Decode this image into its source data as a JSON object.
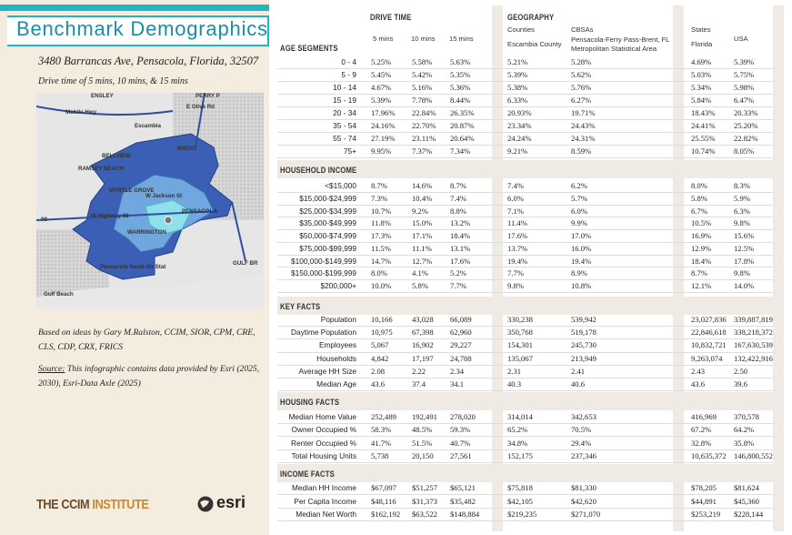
{
  "header": {
    "title": "Benchmark Demographics",
    "address": "3480 Barrancas Ave, Pensacola, Florida, 32507",
    "subtitle": "Drive time of 5 mins, 10 mins, & 15 mins"
  },
  "map": {
    "labels": [
      "ENSLEY",
      "PERRY P",
      "E Olive Rd",
      "Mobile Hwy",
      "Escambia",
      "BELLVIEW",
      "BRENT",
      "RAMSEY BEACH",
      "MYRTLE GROVE",
      "W Jackson St",
      "W Highway 98",
      "WARRINGTON",
      "PENSACOLA",
      "GULF BR",
      "Pensacola Naval Air Stat",
      "Gulf Beach",
      "98"
    ]
  },
  "notes": {
    "credit": "Based on ideas by Gary M.Ralston, CCIM, SIOR, CPM, CRE, CLS, CDP, CRX, FRICS",
    "source_label": "Source:",
    "source_text": " This infographic contains data provided by Esri (2025, 2030), Esri-Data Axle (2025)"
  },
  "logos": {
    "ccim_a": "THE CCIM",
    "ccim_b": "INSTITUTE",
    "esri": "esri"
  },
  "table": {
    "groups": [
      "DRIVE TIME",
      "GEOGRAPHY"
    ],
    "subgroups": [
      "Counties",
      "CBSAs",
      "States"
    ],
    "columns": [
      "5 mins",
      "10 mins",
      "15 mins",
      "Escambia County",
      "Pensacola-Ferry Pass-Brent, FL",
      "Metropolitan Statistical Area",
      "Florida",
      "USA"
    ],
    "sections": [
      {
        "title": "AGE SEGMENTS",
        "rows": [
          {
            "label": "0 - 4",
            "values": [
              "5.25%",
              "5.58%",
              "5.63%",
              "5.21%",
              "5.28%",
              "4.69%",
              "5.39%"
            ]
          },
          {
            "label": "5 - 9",
            "values": [
              "5.45%",
              "5.42%",
              "5.35%",
              "5.39%",
              "5.62%",
              "5.03%",
              "5.75%"
            ]
          },
          {
            "label": "10 - 14",
            "values": [
              "4.67%",
              "5.16%",
              "5.36%",
              "5.38%",
              "5.76%",
              "5.34%",
              "5.98%"
            ]
          },
          {
            "label": "15 - 19",
            "values": [
              "5.39%",
              "7.78%",
              "8.44%",
              "6.33%",
              "6.27%",
              "5.84%",
              "6.47%"
            ]
          },
          {
            "label": "20 - 34",
            "values": [
              "17.96%",
              "22.84%",
              "26.35%",
              "20.93%",
              "19.71%",
              "18.43%",
              "20.33%"
            ]
          },
          {
            "label": "35 - 54",
            "values": [
              "24.16%",
              "22.70%",
              "20.87%",
              "23.34%",
              "24.43%",
              "24.41%",
              "25.20%"
            ]
          },
          {
            "label": "55 - 74",
            "values": [
              "27.19%",
              "23.11%",
              "20.64%",
              "24.24%",
              "24.31%",
              "25.55%",
              "22.82%"
            ]
          },
          {
            "label": "75+",
            "values": [
              "9.95%",
              "7.37%",
              "7.34%",
              "9.21%",
              "8.59%",
              "10.74%",
              "8.05%"
            ]
          }
        ]
      },
      {
        "title": "HOUSEHOLD INCOME",
        "rows": [
          {
            "label": "<$15,000",
            "values": [
              "8.7%",
              "14.6%",
              "8.7%",
              "7.4%",
              "6.2%",
              "8.0%",
              "8.3%"
            ]
          },
          {
            "label": "$15,000-$24,999",
            "values": [
              "7.3%",
              "10.4%",
              "7.4%",
              "6.0%",
              "5.7%",
              "5.8%",
              "5.9%"
            ]
          },
          {
            "label": "$25,000-$34,999",
            "values": [
              "10.7%",
              "9.2%",
              "8.8%",
              "7.1%",
              "6.0%",
              "6.7%",
              "6.3%"
            ]
          },
          {
            "label": "$35,000-$49,999",
            "values": [
              "11.8%",
              "15.0%",
              "13.2%",
              "11.4%",
              "9.9%",
              "10.5%",
              "9.8%"
            ]
          },
          {
            "label": "$50,000-$74,999",
            "values": [
              "17.3%",
              "17.1%",
              "18.4%",
              "17.6%",
              "17.0%",
              "16.9%",
              "15.6%"
            ]
          },
          {
            "label": "$75,000-$99,999",
            "values": [
              "11.5%",
              "11.1%",
              "13.1%",
              "13.7%",
              "16.0%",
              "12.9%",
              "12.5%"
            ]
          },
          {
            "label": "$100,000-$149,999",
            "values": [
              "14.7%",
              "12.7%",
              "17.6%",
              "19.4%",
              "19.4%",
              "18.4%",
              "17.8%"
            ]
          },
          {
            "label": "$150,000-$199,999",
            "values": [
              "8.0%",
              "4.1%",
              "5.2%",
              "7.7%",
              "8.9%",
              "8.7%",
              "9.8%"
            ]
          },
          {
            "label": "$200,000+",
            "values": [
              "10.0%",
              "5.8%",
              "7.7%",
              "9.8%",
              "10.8%",
              "12.1%",
              "14.0%"
            ]
          }
        ]
      },
      {
        "title": "KEY FACTS",
        "rows": [
          {
            "label": "Population",
            "values": [
              "10,166",
              "43,028",
              "66,089",
              "330,238",
              "539,942",
              "23,027,836",
              "339,887,819"
            ]
          },
          {
            "label": "Daytime Population",
            "values": [
              "10,975",
              "67,398",
              "62,960",
              "350,768",
              "519,178",
              "22,846,618",
              "338,218,372"
            ]
          },
          {
            "label": "Employees",
            "values": [
              "5,067",
              "16,902",
              "29,227",
              "154,301",
              "245,730",
              "10,832,721",
              "167,630,539"
            ]
          },
          {
            "label": "Households",
            "values": [
              "4,842",
              "17,197",
              "24,788",
              "135,067",
              "213,949",
              "9,263,074",
              "132,422,916"
            ]
          },
          {
            "label": "Average HH Size",
            "values": [
              "2.08",
              "2.22",
              "2.34",
              "2.31",
              "2.41",
              "2.43",
              "2.50"
            ]
          },
          {
            "label": "Median Age",
            "values": [
              "43.6",
              "37.4",
              "34.1",
              "40.3",
              "40.6",
              "43.6",
              "39.6"
            ]
          }
        ]
      },
      {
        "title": "HOUSING FACTS",
        "rows": [
          {
            "label": "Median Home Value",
            "values": [
              "252,489",
              "192,491",
              "278,020",
              "314,014",
              "342,653",
              "416,969",
              "370,578"
            ]
          },
          {
            "label": "Owner Occupied %",
            "values": [
              "58.3%",
              "48.5%",
              "59.3%",
              "65.2%",
              "70.5%",
              "67.2%",
              "64.2%"
            ]
          },
          {
            "label": "Renter Occupied %",
            "values": [
              "41.7%",
              "51.5%",
              "40.7%",
              "34.8%",
              "29.4%",
              "32.8%",
              "35.8%"
            ]
          },
          {
            "label": "Total Housing Units",
            "values": [
              "5,738",
              "20,150",
              "27,561",
              "152,175",
              "237,346",
              "10,635,372",
              "146,800,552"
            ]
          }
        ]
      },
      {
        "title": "INCOME FACTS",
        "rows": [
          {
            "label": "Median HH Income",
            "values": [
              "$67,097",
              "$51,257",
              "$65,121",
              "$75,818",
              "$81,330",
              "$78,205",
              "$81,624"
            ]
          },
          {
            "label": "Per Capita Income",
            "values": [
              "$48,116",
              "$31,373",
              "$35,482",
              "$42,105",
              "$42,620",
              "$44,891",
              "$45,360"
            ]
          },
          {
            "label": "Median Net Worth",
            "values": [
              "$162,192",
              "$63,522",
              "$148,884",
              "$219,235",
              "$271,070",
              "$253,219",
              "$228,144"
            ]
          }
        ]
      }
    ]
  }
}
